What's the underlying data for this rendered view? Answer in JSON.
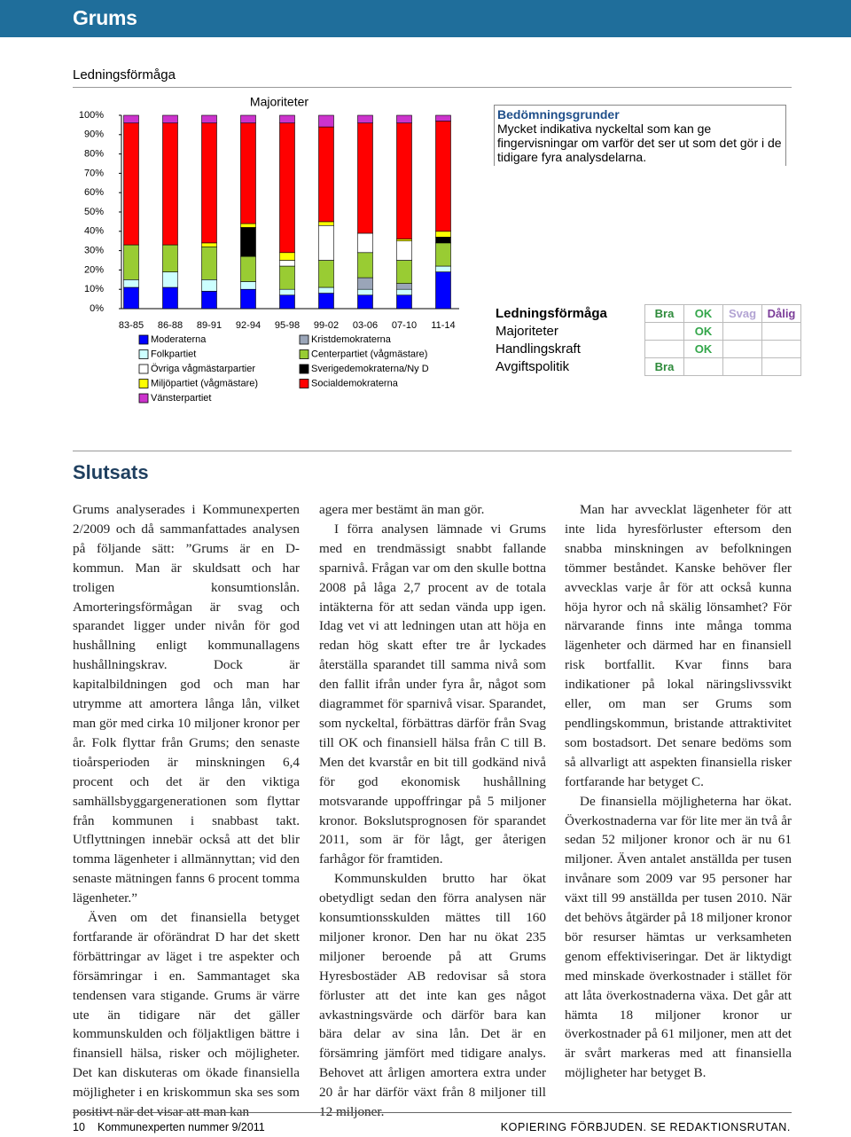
{
  "header": {
    "title": "Grums"
  },
  "section": {
    "title": "Ledningsförmåga"
  },
  "chart_data": {
    "type": "bar",
    "stacked": true,
    "title": "Majoriteter",
    "categories": [
      "83-85",
      "86-88",
      "89-91",
      "92-94",
      "95-98",
      "99-02",
      "03-06",
      "07-10",
      "11-14"
    ],
    "ylim": [
      0,
      100
    ],
    "yticks": [
      {
        "value": 0,
        "label": "0%"
      },
      {
        "value": 10,
        "label": "10%"
      },
      {
        "value": 20,
        "label": "20%"
      },
      {
        "value": 30,
        "label": "30%"
      },
      {
        "value": 40,
        "label": "40%"
      },
      {
        "value": 50,
        "label": "50%"
      },
      {
        "value": 60,
        "label": "60%"
      },
      {
        "value": 70,
        "label": "70%"
      },
      {
        "value": 80,
        "label": "80%"
      },
      {
        "value": 90,
        "label": "90%"
      },
      {
        "value": 100,
        "label": "100%"
      }
    ],
    "series": [
      {
        "name": "Moderaterna",
        "color": "#0000ff",
        "values": [
          11,
          11,
          9,
          10,
          7,
          8,
          7,
          7,
          19
        ]
      },
      {
        "name": "Folkpartiet",
        "color": "#ccffff",
        "values": [
          4,
          8,
          6,
          4,
          3,
          3,
          3,
          3,
          3
        ]
      },
      {
        "name": "Kristdemokraterna",
        "color": "#9aa5b8",
        "values": [
          0,
          0,
          0,
          0,
          0,
          0,
          6,
          3,
          0
        ]
      },
      {
        "name": "Centerpartiet (vågmästare)",
        "color": "#99cc33",
        "values": [
          18,
          14,
          17,
          13,
          12,
          14,
          13,
          12,
          12
        ]
      },
      {
        "name": "Övriga vågmästarpartier",
        "color": "#ffffff",
        "values": [
          0,
          0,
          0,
          0,
          3,
          18,
          10,
          10,
          0
        ]
      },
      {
        "name": "Sverigedemokraterna/Ny D",
        "color": "#000000",
        "values": [
          0,
          0,
          0,
          15,
          0,
          0,
          0,
          0,
          3
        ]
      },
      {
        "name": "Miljöpartiet (vågmästare)",
        "color": "#ffff00",
        "values": [
          0,
          0,
          2,
          2,
          4,
          2,
          0,
          1,
          3
        ]
      },
      {
        "name": "Socialdemokraterna",
        "color": "#ff0000",
        "values": [
          63,
          63,
          62,
          52,
          67,
          49,
          57,
          60,
          57
        ]
      },
      {
        "name": "Vänsterpartiet",
        "color": "#cc33cc",
        "values": [
          4,
          4,
          4,
          4,
          4,
          6,
          4,
          4,
          3
        ]
      }
    ]
  },
  "criteria": {
    "title": "Bedömningsgrunder",
    "text": "Mycket indikativa nyckeltal som kan ge fingervisningar om varför det ser ut som det gör i de tidigare fyra analysdelarna."
  },
  "ratings": {
    "header": [
      "Ledningsförmåga",
      "Bra",
      "OK",
      "Svag",
      "Dålig"
    ],
    "rows": [
      {
        "label": "Majoriteter",
        "rating": "OK"
      },
      {
        "label": "Handlingskraft",
        "rating": "OK"
      },
      {
        "label": "Avgiftspolitik",
        "rating": "Bra"
      }
    ]
  },
  "conclusion": {
    "title": "Slutsats",
    "columns": [
      [
        "Grums analyserades i Kommunexperten 2/2009 och då sammanfattades analysen på följande sätt: ”Grums är en D-kommun. Man är skuldsatt och har troligen konsumtionslån. Amorteringsförmågan är svag och sparandet ligger under nivån för god hushållning enligt kommunallagens hushållningskrav. Dock är kapitalbildningen god och man har utrymme att amortera långa lån, vilket man gör med cirka 10 miljoner kronor per år. Folk flyttar från Grums; den senaste tioårsperioden är minskningen 6,4 procent och det är den viktiga samhällsbyggargenerationen som flyttar från kommunen i snabbast takt. Utflyttningen innebär också att det blir tomma lägenheter i allmännyttan; vid den senaste mätningen fanns 6 procent tomma lägenheter.”",
        "Även om det finansiella betyget fortfarande är oförändrat D har det skett förbättringar av läget i tre aspekter och försämringar i en. Sammantaget ska tendensen vara stigande. Grums är värre ute än tidigare när det gäller kommunskulden och följaktligen bättre i finansiell hälsa, risker och möjligheter. Det kan diskuteras om ökade finansiella möjligheter i en kriskommun ska ses som positivt när det visar att man kan"
      ],
      [
        "agera mer bestämt än man gör.",
        "I förra analysen lämnade vi Grums med en trendmässigt snabbt fallande sparnivå. Frågan var om den skulle bottna 2008 på låga 2,7 procent av de totala intäkterna för att sedan vända upp igen. Idag vet vi att ledningen utan att höja en redan hög skatt efter tre år lyckades återställa sparandet till samma nivå som den fallit ifrån under fyra år, något som diagrammet för sparnivå visar. Sparandet, som nyckeltal, förbättras därför från Svag till OK och finansiell hälsa från C till B. Men det kvarstår en bit till godkänd nivå för god ekonomisk hushållning motsvarande uppoffringar på 5 miljoner kronor. Bokslutsprognosen för sparandet 2011, som är för lågt, ger återigen farhågor för framtiden.",
        "Kommunskulden brutto har ökat obetydligt sedan den förra analysen när konsumtionsskulden mättes till 160 miljoner kronor. Den har nu ökat 235 miljoner beroende på att Grums Hyresbostäder AB redovisar så stora förluster att det inte kan ges något avkastningsvärde och därför bara kan bära delar av sina lån. Det är en försämring jämfört med tidigare analys. Behovet att årligen amortera extra under 20 år har därför växt från 8 miljoner till 12 miljoner."
      ],
      [
        "Man har avvecklat lägenheter för att inte lida hyresförluster eftersom den snabba minskningen av befolkningen tömmer beståndet. Kanske behöver fler avvecklas varje år för att också kunna höja hyror och nå skälig lönsamhet? För närvarande finns inte många tomma lägenheter och därmed har en finansiell risk bortfallit. Kvar finns bara indikationer på lokal näringslivssvikt eller, om man ser Grums som pendlingskommun, bristande attraktivitet som bostadsort. Det senare bedöms som så allvarligt att aspekten finansiella risker fortfarande har betyget C.",
        "De finansiella möjligheterna har ökat. Överkostnaderna var för lite mer än två år sedan 52 miljoner kronor och är nu 61 miljoner. Även antalet anställda per tusen invånare som 2009 var 95 personer har växt till 99 anställda per tusen 2010. När det behövs åtgärder på 18 miljoner kronor bör resurser hämtas ur verksamheten genom effektiviseringar. Det är liktydigt med minskade överkostnader i stället för att låta överkostnaderna växa. Det går att hämta 18 miljoner kronor ur överkostnader på 61 miljoner, men att det är svårt markeras med att finansiella möjligheter har betyget B."
      ]
    ]
  },
  "footer": {
    "page": "10",
    "publication": "Kommunexperten nummer 9/2011",
    "notice": "KOPIERING FÖRBJUDEN. SE REDAKTIONSRUTAN."
  }
}
